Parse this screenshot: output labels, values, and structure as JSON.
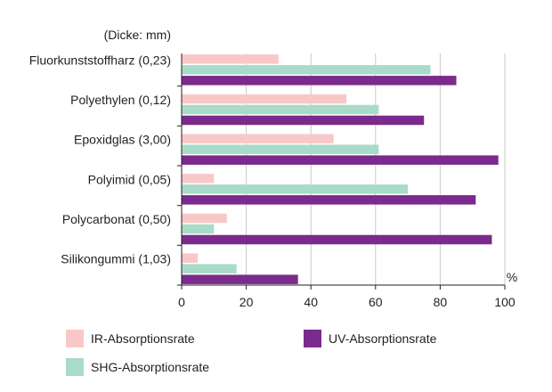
{
  "chart_data": {
    "type": "bar",
    "orientation": "horizontal",
    "unit_note": "(Dicke: mm)",
    "categories": [
      "Fluorkunststoffharz (0,23)",
      "Polyethylen (0,12)",
      "Epoxidglas (3,00)",
      "Polyimid (0,05)",
      "Polycarbonat (0,50)",
      "Silikongummi (1,03)"
    ],
    "series": [
      {
        "name": "IR-Absorptionsrate",
        "color": "#f8c8c8",
        "values": [
          30,
          51,
          47,
          10,
          14,
          5
        ]
      },
      {
        "name": "SHG-Absorptionsrate",
        "color": "#a9dcc8",
        "values": [
          77,
          61,
          61,
          70,
          10,
          17
        ]
      },
      {
        "name": "UV-Absorptionsrate",
        "color": "#7b2a8d",
        "values": [
          85,
          75,
          98,
          91,
          96,
          36
        ]
      }
    ],
    "x_unit": "%",
    "xlim": [
      0,
      100
    ],
    "xticks": [
      0,
      20,
      40,
      60,
      80,
      100
    ],
    "xtick_labels": [
      "0",
      "20",
      "40",
      "60",
      "80",
      "100"
    ],
    "grid": true,
    "legend_position": "bottom"
  }
}
